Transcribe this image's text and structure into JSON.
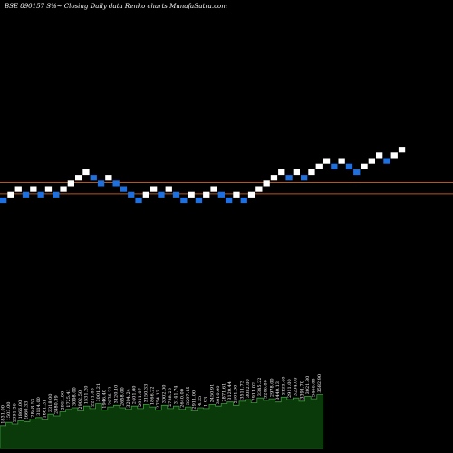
{
  "chart_data": {
    "type": "renko",
    "title": "BSE 890157 S%~  Closing Daily data  Renko  charts MunafaSutra.com",
    "colors": {
      "background": "#000000",
      "up_brick": "#ffffff",
      "down_brick": "#1e6fe0",
      "reference_line": "#b5561c",
      "volume_fill": "#0a3a0a",
      "volume_stroke": "#3f9a3f"
    },
    "reference_lines": [
      18.15,
      17.45
    ],
    "bricks": [
      {
        "dir": "down",
        "value": 17.05
      },
      {
        "dir": "up",
        "value": 17.4
      },
      {
        "dir": "up",
        "value": 17.75
      },
      {
        "dir": "down",
        "value": 17.4
      },
      {
        "dir": "up",
        "value": 17.75
      },
      {
        "dir": "down",
        "value": 17.4
      },
      {
        "dir": "up",
        "value": 17.75
      },
      {
        "dir": "down",
        "value": 17.4
      },
      {
        "dir": "up",
        "value": 17.75
      },
      {
        "dir": "up",
        "value": 18.1
      },
      {
        "dir": "up",
        "value": 18.45
      },
      {
        "dir": "up",
        "value": 18.8
      },
      {
        "dir": "down",
        "value": 18.45
      },
      {
        "dir": "down",
        "value": 18.1
      },
      {
        "dir": "up",
        "value": 18.45
      },
      {
        "dir": "down",
        "value": 18.1
      },
      {
        "dir": "down",
        "value": 17.75
      },
      {
        "dir": "down",
        "value": 17.4
      },
      {
        "dir": "down",
        "value": 17.05
      },
      {
        "dir": "up",
        "value": 17.4
      },
      {
        "dir": "up",
        "value": 17.75
      },
      {
        "dir": "down",
        "value": 17.4
      },
      {
        "dir": "up",
        "value": 17.75
      },
      {
        "dir": "down",
        "value": 17.4
      },
      {
        "dir": "down",
        "value": 17.05
      },
      {
        "dir": "up",
        "value": 17.4
      },
      {
        "dir": "down",
        "value": 17.05
      },
      {
        "dir": "up",
        "value": 17.4
      },
      {
        "dir": "up",
        "value": 17.75
      },
      {
        "dir": "down",
        "value": 17.4
      },
      {
        "dir": "down",
        "value": 17.05
      },
      {
        "dir": "up",
        "value": 17.4
      },
      {
        "dir": "down",
        "value": 17.05
      },
      {
        "dir": "up",
        "value": 17.4
      },
      {
        "dir": "up",
        "value": 17.75
      },
      {
        "dir": "up",
        "value": 18.1
      },
      {
        "dir": "up",
        "value": 18.45
      },
      {
        "dir": "up",
        "value": 18.8
      },
      {
        "dir": "down",
        "value": 18.45
      },
      {
        "dir": "up",
        "value": 18.8
      },
      {
        "dir": "down",
        "value": 18.45
      },
      {
        "dir": "up",
        "value": 18.8
      },
      {
        "dir": "up",
        "value": 19.15
      },
      {
        "dir": "up",
        "value": 19.5
      },
      {
        "dir": "down",
        "value": 19.15
      },
      {
        "dir": "up",
        "value": 19.5
      },
      {
        "dir": "down",
        "value": 19.15
      },
      {
        "dir": "down",
        "value": 18.8
      },
      {
        "dir": "up",
        "value": 19.15
      },
      {
        "dir": "up",
        "value": 19.5
      },
      {
        "dir": "up",
        "value": 19.85
      },
      {
        "dir": "down",
        "value": 19.5
      },
      {
        "dir": "up",
        "value": 19.85
      },
      {
        "dir": "up",
        "value": 20.2
      }
    ],
    "volume_labels": [
      "1831.00",
      "1503.00",
      "2091.36",
      "1866.00",
      "2660.33",
      "2848.53",
      "3114.00",
      "1661.31",
      "3318.00",
      "2880.39",
      "2951.00",
      "1725.41",
      "3098.00",
      "2902.50",
      "1531.20",
      "2211.00",
      "3001.21",
      "1946.40",
      "2876.22",
      "3120.10",
      "2658.00",
      "3204.24",
      "2401.00",
      "2911.07",
      "3150.33",
      "1866.22",
      "2754.12",
      "3002.00",
      "2788.26",
      "3141.74",
      "2640.00",
      "3297.15",
      "2911.00",
      "4.35",
      "1.93",
      "2450.91",
      "3010.00",
      "2871.61",
      "3120.44",
      "2601.00",
      "3511.73",
      "3082.00",
      "2911.02",
      "3345.22",
      "3206.80",
      "2978.00",
      "3440.13",
      "3133.40",
      "2911.00",
      "3204.00",
      "3391.70",
      "3021.80",
      "3466.00",
      "3582.90"
    ],
    "volume_values": [
      28,
      32,
      30,
      34,
      33,
      36,
      38,
      35,
      42,
      40,
      45,
      48,
      50,
      46,
      52,
      49,
      55,
      47,
      51,
      53,
      50,
      48,
      52,
      49,
      54,
      51,
      47,
      53,
      49,
      52,
      48,
      51,
      46,
      50,
      49,
      54,
      52,
      55,
      57,
      53,
      58,
      60,
      56,
      62,
      59,
      61,
      57,
      63,
      60,
      62,
      58,
      64,
      61,
      66
    ]
  }
}
